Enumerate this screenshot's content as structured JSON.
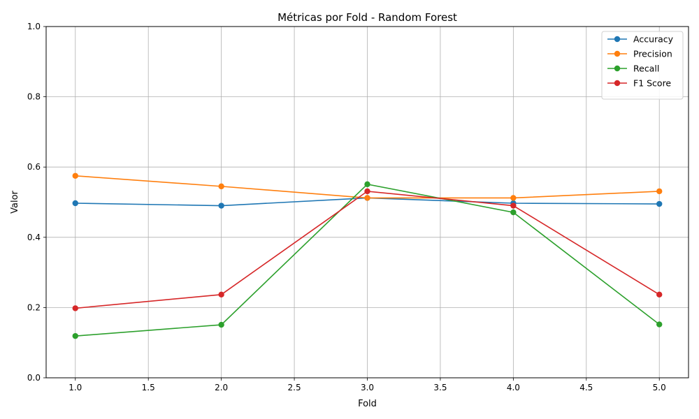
{
  "chart_data": {
    "type": "line",
    "title": "Métricas por Fold - Random Forest",
    "xlabel": "Fold",
    "ylabel": "Valor",
    "x": [
      1,
      2,
      3,
      4,
      5
    ],
    "xlim": [
      0.8,
      5.2
    ],
    "ylim": [
      0.0,
      1.0
    ],
    "xticks": [
      1.0,
      1.5,
      2.0,
      2.5,
      3.0,
      3.5,
      4.0,
      4.5,
      5.0
    ],
    "xtick_labels": [
      "1.0",
      "1.5",
      "2.0",
      "2.5",
      "3.0",
      "3.5",
      "4.0",
      "4.5",
      "5.0"
    ],
    "yticks": [
      0.0,
      0.2,
      0.4,
      0.6,
      0.8,
      1.0
    ],
    "ytick_labels": [
      "0.0",
      "0.2",
      "0.4",
      "0.6",
      "0.8",
      "1.0"
    ],
    "grid": true,
    "legend_position": "top-right",
    "series": [
      {
        "name": "Accuracy",
        "color": "#1f77b4",
        "values": [
          0.497,
          0.49,
          0.512,
          0.497,
          0.495
        ]
      },
      {
        "name": "Precision",
        "color": "#ff7f0e",
        "values": [
          0.575,
          0.545,
          0.512,
          0.512,
          0.531
        ]
      },
      {
        "name": "Recall",
        "color": "#2ca02c",
        "values": [
          0.119,
          0.151,
          0.551,
          0.471,
          0.152
        ]
      },
      {
        "name": "F1 Score",
        "color": "#d62728",
        "values": [
          0.198,
          0.237,
          0.531,
          0.49,
          0.237
        ]
      }
    ]
  }
}
